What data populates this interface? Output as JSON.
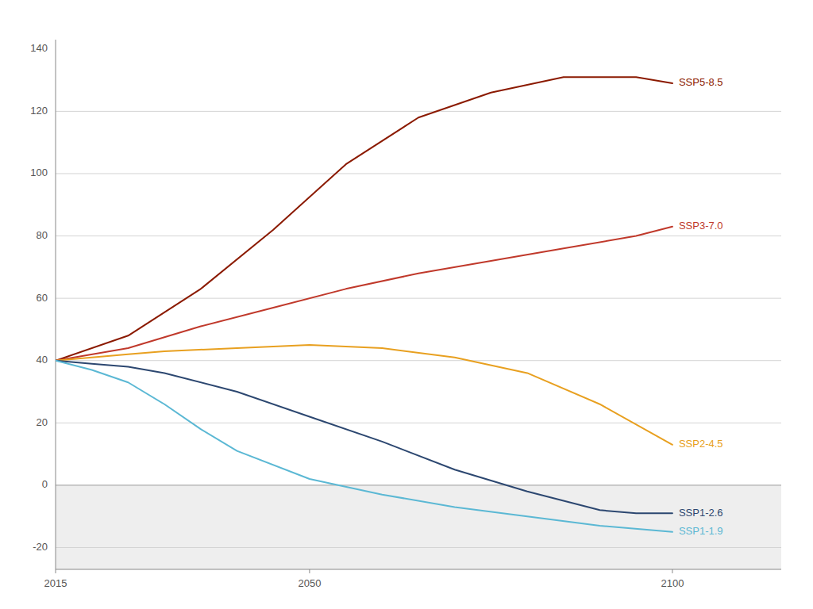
{
  "chart_data": {
    "type": "line",
    "xlim": [
      2015,
      2115
    ],
    "ylim": [
      -27,
      143
    ],
    "xticks": [
      2015,
      2050,
      2100
    ],
    "yticks": [
      -20,
      0,
      20,
      40,
      60,
      80,
      100,
      120
    ],
    "grid": true,
    "annotations": [
      {
        "text": "140",
        "y": 140
      }
    ],
    "series": [
      {
        "name": "SSP5-8.5",
        "color": "#8B1A00",
        "x": [
          2015,
          2025,
          2035,
          2045,
          2055,
          2065,
          2075,
          2085,
          2095,
          2100
        ],
        "values": [
          40,
          48,
          63,
          82,
          103,
          118,
          126,
          131,
          131,
          129
        ]
      },
      {
        "name": "SSP3-7.0",
        "color": "#C0392B",
        "x": [
          2015,
          2025,
          2035,
          2045,
          2055,
          2065,
          2075,
          2085,
          2095,
          2100
        ],
        "values": [
          40,
          44,
          51,
          57,
          63,
          68,
          72,
          76,
          80,
          83
        ]
      },
      {
        "name": "SSP2-4.5",
        "color": "#E8A020",
        "x": [
          2015,
          2020,
          2025,
          2030,
          2040,
          2050,
          2060,
          2070,
          2080,
          2090,
          2100
        ],
        "values": [
          40,
          41,
          42,
          43,
          44,
          45,
          44,
          41,
          36,
          26,
          13
        ]
      },
      {
        "name": "SSP1-2.6",
        "color": "#2C4770",
        "x": [
          2015,
          2020,
          2025,
          2030,
          2040,
          2050,
          2060,
          2070,
          2080,
          2090,
          2095,
          2100
        ],
        "values": [
          40,
          39,
          38,
          36,
          30,
          22,
          14,
          5,
          -2,
          -8,
          -9,
          -9
        ]
      },
      {
        "name": "SSP1-1.9",
        "color": "#5BB8D4",
        "x": [
          2015,
          2020,
          2025,
          2030,
          2035,
          2040,
          2050,
          2060,
          2070,
          2080,
          2090,
          2100
        ],
        "values": [
          40,
          37,
          33,
          26,
          18,
          11,
          2,
          -3,
          -7,
          -10,
          -13,
          -15
        ]
      }
    ]
  }
}
